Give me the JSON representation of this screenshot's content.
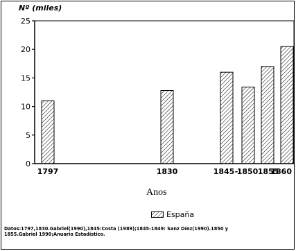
{
  "chart_data": {
    "type": "bar",
    "ylabel": "Nº (miles)",
    "xlabel": "Anos",
    "ylim": [
      0,
      25
    ],
    "yticks": [
      0,
      5,
      10,
      15,
      20,
      25
    ],
    "grid": false,
    "legend_position": "bottom-center",
    "series": [
      {
        "name": "España",
        "hatch": "diagonal",
        "color": "#000000",
        "points": [
          {
            "year": 1797,
            "value": 11
          },
          {
            "year": 1830,
            "value": 12.8
          },
          {
            "year": 1845,
            "value": 16
          },
          {
            "year": 1850,
            "value": 13.4
          },
          {
            "year": 1855,
            "value": 17
          },
          {
            "year": 1860,
            "value": 20.5
          }
        ]
      }
    ],
    "x_tick_labels": [
      "1797",
      "1830",
      "1845",
      "1850",
      "1855",
      "1860"
    ]
  },
  "x_tick_separator": "-",
  "legend": {
    "label": "España"
  },
  "source_note": "Datos:1797,1830.Gabriel(1990),1845:Costa (1989);1845-1849: Sanz Díez(1990).1850 y 1855.Gabriel 1990;Anuario Estadístico."
}
